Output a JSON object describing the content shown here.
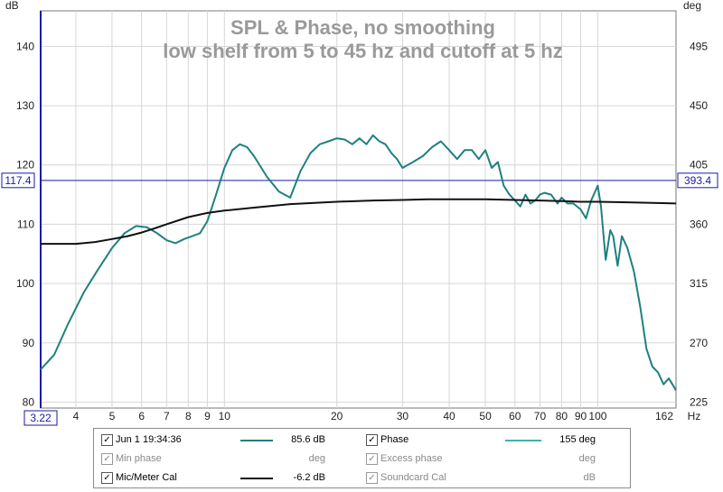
{
  "chart_data": {
    "type": "line",
    "title": "SPL & Phase, no smoothing",
    "subtitle": "low shelf from 5 to 45 hz and cutoff at 5 hz",
    "x_scale": "log",
    "xlim": [
      3.22,
      162
    ],
    "x_unit": "Hz",
    "x_ticks": [
      4,
      5,
      6,
      7,
      8,
      9,
      10,
      20,
      30,
      40,
      50,
      60,
      70,
      80,
      90,
      100
    ],
    "x_tick_labels": [
      "4",
      "5",
      "6",
      "7",
      "8",
      "9",
      "10",
      "20",
      "30",
      "40",
      "50",
      "60",
      "70",
      "80",
      "90",
      "100"
    ],
    "ylim_left": [
      79,
      146
    ],
    "ylabel_left": "dB",
    "y_ticks_left": [
      80,
      90,
      100,
      110,
      120,
      130,
      140
    ],
    "ylabel_right": "deg",
    "y_ticks_right": [
      225,
      270,
      315,
      360,
      405,
      450,
      495
    ],
    "cursor": {
      "x": "3.22",
      "y_left": "117.4",
      "y_right": "393.4",
      "x_end": "162"
    },
    "grid": true,
    "series": [
      {
        "name": "Jun 1 19:34:36",
        "color": "#1f8080",
        "x": [
          3.22,
          3.5,
          3.8,
          4.2,
          4.6,
          5,
          5.4,
          5.8,
          6.2,
          6.6,
          7,
          7.4,
          7.8,
          8.2,
          8.6,
          9,
          9.5,
          10,
          10.5,
          11,
          11.5,
          12,
          13,
          14,
          15,
          16,
          17,
          18,
          19,
          20,
          21,
          22,
          23,
          24,
          25,
          26,
          27,
          28,
          29,
          30,
          32,
          34,
          36,
          38,
          40,
          42,
          44,
          46,
          48,
          50,
          52,
          54,
          56,
          58,
          60,
          62,
          64,
          66,
          68,
          70,
          72,
          75,
          78,
          80,
          83,
          86,
          90,
          93,
          96,
          100,
          102,
          105,
          108,
          110,
          113,
          116,
          120,
          125,
          130,
          135,
          140,
          145,
          150,
          155,
          162
        ],
        "values": [
          85.5,
          88,
          93,
          98.5,
          102.5,
          106,
          108.5,
          109.7,
          109.5,
          108.5,
          107.3,
          106.8,
          107.5,
          108,
          108.5,
          110.5,
          115,
          119.5,
          122.5,
          123.5,
          123,
          121.5,
          118,
          115.5,
          114.5,
          119,
          122,
          123.5,
          124,
          124.5,
          124.3,
          123.5,
          124.5,
          123.5,
          125,
          124,
          123.5,
          122,
          121,
          119.5,
          120.5,
          121.5,
          123,
          124,
          122.5,
          121,
          122.5,
          122.5,
          121,
          122.5,
          119.5,
          120.5,
          116.5,
          115,
          114,
          113,
          115,
          113.5,
          114,
          115,
          115.3,
          115,
          113.5,
          114.5,
          113.5,
          113.5,
          112.5,
          111,
          114,
          116.5,
          113,
          104,
          109,
          108,
          103,
          108,
          106,
          102,
          96,
          89,
          86,
          85,
          83,
          84,
          82
        ]
      },
      {
        "name": "Mic/Meter Cal",
        "color": "#111111",
        "x": [
          3.22,
          4,
          4.5,
          5,
          5.5,
          6,
          6.5,
          7,
          8,
          9,
          10,
          12,
          15,
          20,
          25,
          30,
          35,
          40,
          50,
          60,
          70,
          80,
          90,
          100,
          120,
          140,
          162
        ],
        "values": [
          106.7,
          106.7,
          107,
          107.5,
          108,
          108.6,
          109.3,
          110,
          111.2,
          111.9,
          112.3,
          112.8,
          113.4,
          113.8,
          114,
          114.1,
          114.2,
          114.2,
          114.2,
          114.1,
          114,
          113.9,
          113.8,
          113.8,
          113.7,
          113.6,
          113.5
        ]
      }
    ]
  },
  "legend": {
    "rows": [
      {
        "checked": true,
        "dim": false,
        "name": "Jun 1 19:34:36",
        "color": "#1f8080",
        "value": "85.6 dB",
        "name2": "Phase",
        "checked2": true,
        "dim2": false,
        "color2": "#40b0b0",
        "value2": "155 deg"
      },
      {
        "checked": true,
        "dim": true,
        "name": "Min phase",
        "color": "",
        "value": "deg",
        "name2": "Excess phase",
        "checked2": true,
        "dim2": true,
        "color2": "",
        "value2": "deg"
      },
      {
        "checked": true,
        "dim": false,
        "name": "Mic/Meter Cal",
        "color": "#111111",
        "value": "-6.2 dB",
        "name2": "Soundcard Cal",
        "checked2": true,
        "dim2": true,
        "color2": "",
        "value2": "dB"
      }
    ]
  }
}
